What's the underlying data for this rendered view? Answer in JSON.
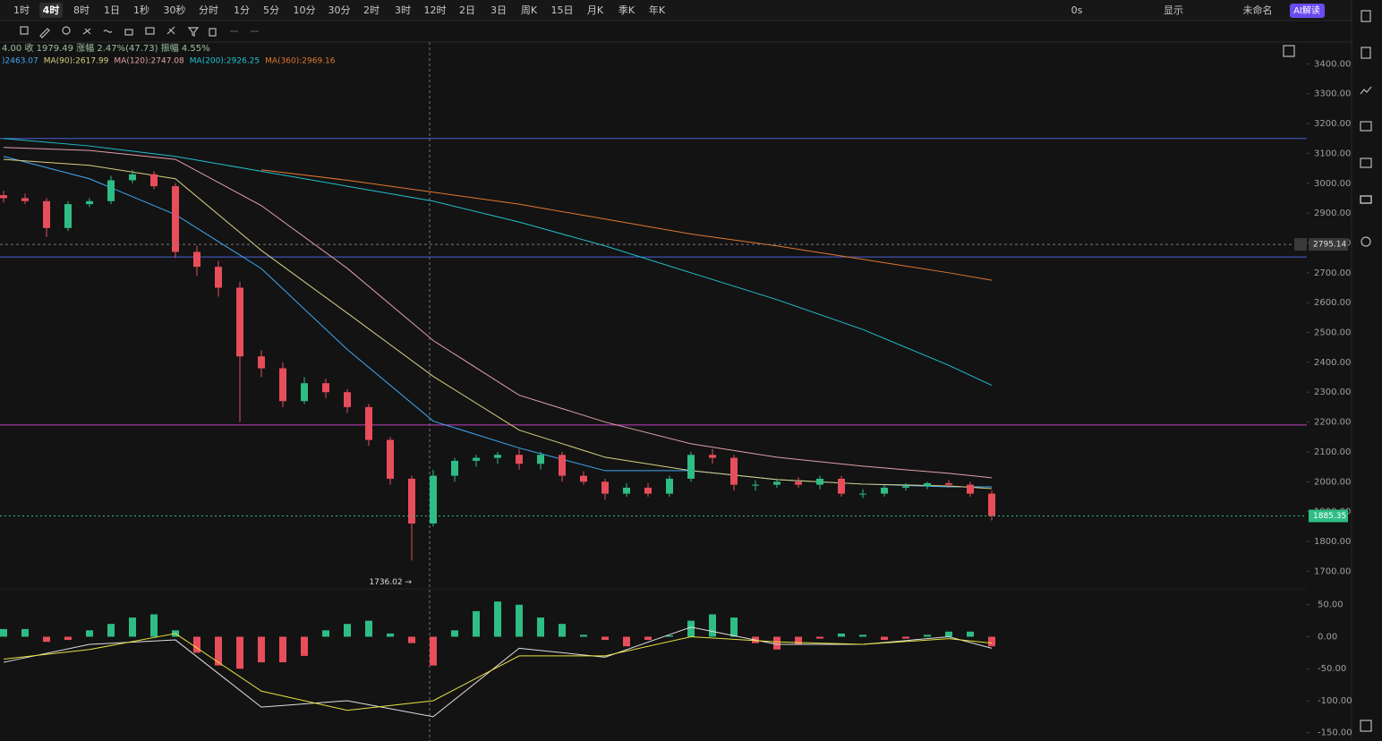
{
  "toolbar": {
    "intervals": [
      "1时",
      "4时",
      "8时",
      "1日",
      "1秒",
      "30秒",
      "分时",
      "1分",
      "5分",
      "10分",
      "30分",
      "2时",
      "3时",
      "12时",
      "2日",
      "3日",
      "周K",
      "15日",
      "月K",
      "季K",
      "年K"
    ],
    "active": 1,
    "right": [
      "0s",
      "显示",
      "未命名",
      "AI解读"
    ]
  },
  "chart_data": [
    {
      "type": "candlestick",
      "info": "4.00 收 1979.49 涨幅 2.47%(47.73) 振幅 4.55%",
      "open": [
        2960,
        2950,
        2940,
        2850,
        2930,
        2940,
        3010,
        3030,
        2990,
        2770,
        2720,
        2650,
        2420,
        2380,
        2270,
        2330,
        2300,
        2250,
        2140,
        2010,
        1860,
        2020,
        2070,
        2080,
        2090,
        2060,
        2090,
        2020,
        2000,
        1960,
        1980,
        1960,
        2010,
        2090,
        2080,
        1990,
        1990,
        2000,
        1990,
        2010,
        1960,
        1960,
        1980,
        1985,
        1995,
        1990,
        1960
      ],
      "high": [
        2975,
        2965,
        2950,
        2940,
        2950,
        3025,
        3045,
        3040,
        3000,
        2790,
        2740,
        2670,
        2440,
        2400,
        2350,
        2345,
        2310,
        2260,
        2150,
        2020,
        2040,
        2080,
        2090,
        2100,
        2110,
        2100,
        2100,
        2035,
        2010,
        1995,
        1995,
        2020,
        2100,
        2110,
        2090,
        2005,
        2010,
        2015,
        2020,
        2020,
        1975,
        1990,
        1995,
        2000,
        2005,
        2000,
        1970
      ],
      "low": [
        2935,
        2930,
        2820,
        2840,
        2920,
        2930,
        3000,
        2980,
        2750,
        2690,
        2620,
        2200,
        2350,
        2250,
        2260,
        2280,
        2230,
        2120,
        1990,
        1736.02,
        1850,
        2000,
        2050,
        2060,
        2040,
        2040,
        2000,
        1990,
        1940,
        1950,
        1950,
        1950,
        2000,
        2060,
        1970,
        1970,
        1980,
        1980,
        1975,
        1950,
        1945,
        1950,
        1970,
        1975,
        1980,
        1950,
        1870
      ],
      "close": [
        2950,
        2940,
        2850,
        2930,
        2940,
        3010,
        3030,
        2990,
        2770,
        2720,
        2650,
        2420,
        2380,
        2270,
        2330,
        2300,
        2250,
        2140,
        2010,
        1860,
        2020,
        2070,
        2080,
        2090,
        2060,
        2090,
        2020,
        2000,
        1960,
        1980,
        1960,
        2010,
        2090,
        2080,
        1990,
        1990,
        2000,
        1990,
        2010,
        1960,
        1960,
        1980,
        1985,
        1995,
        1990,
        1960,
        1885.35
      ],
      "up_color": "#2ebd85",
      "down_color": "#e84d5b",
      "ma": [
        {
          "label": ")2463.07",
          "color": "#3fa9f5",
          "x": [
            0,
            4,
            8,
            12,
            16,
            20,
            24,
            28,
            32,
            36,
            40,
            44,
            46
          ],
          "values": [
            3090,
            3015,
            2895,
            2714,
            2443,
            2203,
            2113,
            2037,
            2037,
            2007,
            1992,
            1983,
            1983
          ]
        },
        {
          "label": "MA(90):2617.99",
          "color": "#d8d080",
          "x": [
            0,
            4,
            8,
            12,
            16,
            20,
            24,
            28,
            32,
            36,
            40,
            44,
            46
          ],
          "values": [
            3080,
            3060,
            3015,
            2775,
            2565,
            2353,
            2173,
            2082,
            2037,
            2007,
            1992,
            1986,
            1977
          ]
        },
        {
          "label": "MA(120):2747.08",
          "color": "#e0a0a8",
          "x": [
            0,
            4,
            8,
            12,
            16,
            20,
            24,
            28,
            32,
            36,
            40,
            44,
            46
          ],
          "values": [
            3120,
            3110,
            3080,
            2925,
            2715,
            2473,
            2290,
            2200,
            2127,
            2082,
            2052,
            2028,
            2013
          ]
        },
        {
          "label": "MA(200):2926.25",
          "color": "#20c0d0",
          "x": [
            0,
            4,
            8,
            12,
            16,
            20,
            24,
            28,
            32,
            36,
            40,
            44,
            46
          ],
          "values": [
            3150,
            3125,
            3090,
            3040,
            2990,
            2940,
            2870,
            2790,
            2700,
            2610,
            2510,
            2390,
            2323
          ]
        },
        {
          "label": "MA(360):2969.16",
          "color": "#e07830",
          "x": [
            0,
            4,
            8,
            12,
            16,
            20,
            24,
            28,
            32,
            36,
            40,
            44,
            46
          ],
          "values": [
            null,
            null,
            null,
            3045,
            3010,
            2970,
            2930,
            2880,
            2830,
            2790,
            2745,
            2700,
            2675
          ]
        }
      ],
      "hlines": [
        {
          "value": 3150,
          "color": "#4a63d8"
        },
        {
          "value": 2753,
          "color": "#4a63d8"
        },
        {
          "value": 2190,
          "color": "#c040c0"
        }
      ],
      "crosshair_price": 2795.14,
      "last_price": 1885.35,
      "low_annotation": "1736.02 →",
      "ylim": [
        1650,
        3470
      ],
      "yticks": [
        {
          "value": 3400,
          "label": "3400.00"
        },
        {
          "value": 3300,
          "label": "3300.00"
        },
        {
          "value": 3200,
          "label": "3200.00"
        },
        {
          "value": 3100,
          "label": "3100.00"
        },
        {
          "value": 3000,
          "label": "3000.00"
        },
        {
          "value": 2900,
          "label": "2900.00"
        },
        {
          "value": 2800,
          "label": "2800.00"
        },
        {
          "value": 2700,
          "label": "2700.00"
        },
        {
          "value": 2600,
          "label": "2600.00"
        },
        {
          "value": 2500,
          "label": "2500.00"
        },
        {
          "value": 2400,
          "label": "2400.00"
        },
        {
          "value": 2300,
          "label": "2300.00"
        },
        {
          "value": 2200,
          "label": "2200.00"
        },
        {
          "value": 2100,
          "label": "2100.00"
        },
        {
          "value": 2000,
          "label": "2000.00"
        },
        {
          "value": 1900,
          "label": "1900.00"
        },
        {
          "value": 1800,
          "label": "1800.00"
        },
        {
          "value": 1700,
          "label": "1700.00"
        }
      ]
    },
    {
      "type": "macd",
      "histogram": [
        12,
        12,
        -8,
        -5,
        10,
        20,
        30,
        35,
        10,
        -25,
        -45,
        -50,
        -40,
        -40,
        -30,
        10,
        20,
        25,
        5,
        -10,
        -45,
        10,
        40,
        55,
        50,
        30,
        20,
        3,
        -5,
        -15,
        -5,
        2,
        25,
        35,
        30,
        -10,
        -20,
        -12,
        -3,
        5,
        3,
        -5,
        -3,
        3,
        8,
        8,
        -15
      ],
      "x": [
        0,
        4,
        8,
        12,
        16,
        20,
        24,
        28,
        32,
        36,
        40,
        44,
        46
      ],
      "dif": {
        "color": "#e0e0e0",
        "values": [
          -40,
          -12,
          -5,
          -110,
          -100,
          -125,
          -18,
          -32,
          15,
          -12,
          -12,
          0,
          -18
        ]
      },
      "dea": {
        "color": "#e8e040",
        "values": [
          -35,
          -20,
          5,
          -85,
          -115,
          -100,
          -30,
          -30,
          0,
          -8,
          -12,
          -3,
          -10
        ]
      },
      "ylim": [
        -163,
        72
      ],
      "yticks": [
        {
          "value": 50,
          "label": "50.00"
        },
        {
          "value": 0,
          "label": "0.00"
        },
        {
          "value": -50,
          "label": "-50.00"
        },
        {
          "value": -100,
          "label": "-100.00"
        },
        {
          "value": -150,
          "label": "-150.00"
        }
      ]
    }
  ]
}
